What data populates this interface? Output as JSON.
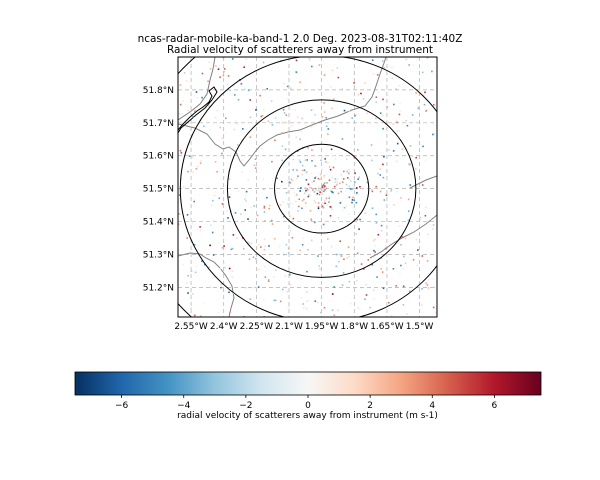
{
  "chart_data": {
    "type": "scatter",
    "title": "ncas-radar-mobile-ka-band-1 2.0 Deg. 2023-08-31T02:11:40Z",
    "subtitle": "Radial velocity of scatterers away from instrument",
    "x_ticks": [
      "2.55°W",
      "2.4°W",
      "2.25°W",
      "2.1°W",
      "1.95°W",
      "1.8°W",
      "1.65°W",
      "1.5°W"
    ],
    "x_tick_values": [
      -2.55,
      -2.4,
      -2.25,
      -2.1,
      -1.95,
      -1.8,
      -1.65,
      -1.5
    ],
    "y_ticks": [
      "51.2°N",
      "51.3°N",
      "51.4°N",
      "51.5°N",
      "51.6°N",
      "51.7°N",
      "51.8°N"
    ],
    "y_tick_values": [
      51.2,
      51.3,
      51.4,
      51.5,
      51.6,
      51.7,
      51.8
    ],
    "xlim": [
      -2.61,
      -1.42
    ],
    "ylim": [
      51.11,
      51.9
    ],
    "center": [
      -1.95,
      51.5
    ],
    "range_rings_km": [
      15,
      30,
      45,
      60
    ],
    "grid": true,
    "colorbar": {
      "label": "radial velocity of scatterers away from instrument (m s-1)",
      "ticks": [
        "−6",
        "−4",
        "−2",
        "0",
        "2",
        "4",
        "6"
      ],
      "tick_values": [
        -6,
        -4,
        -2,
        0,
        2,
        4,
        6
      ],
      "range": [
        -7.5,
        7.5
      ],
      "colormap": "RdBu_r",
      "stops": [
        "#053061",
        "#2166ac",
        "#4393c3",
        "#92c5de",
        "#d1e5f0",
        "#f7f7f7",
        "#fddbc7",
        "#f4a582",
        "#d6604d",
        "#b2182b",
        "#67001f"
      ]
    },
    "colors": {
      "rings": "#000000",
      "border": "#7f7f7f",
      "coast": "#000000",
      "grid": "#b0b0b0"
    }
  }
}
